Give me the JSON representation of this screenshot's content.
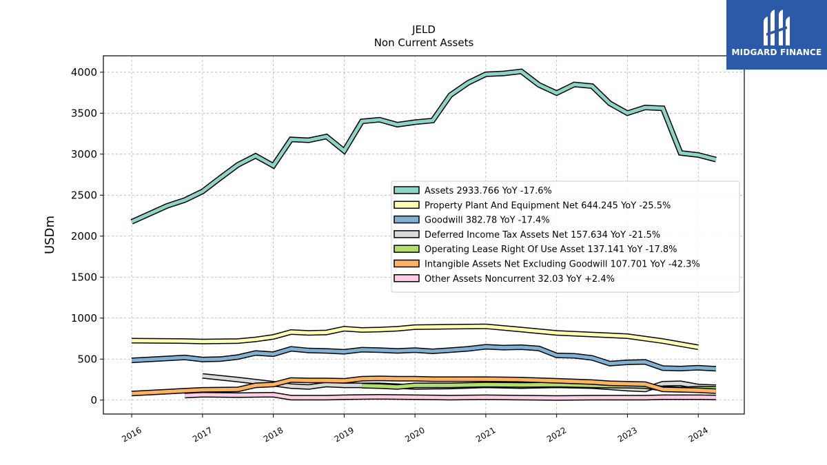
{
  "brand": {
    "name": "MIDGARD FINANCE",
    "color": "#2d5aa8"
  },
  "chart_data": {
    "type": "line",
    "title": "JELD",
    "subtitle": "Non Current  Assets",
    "xlabel": "",
    "ylabel": "USDm",
    "xlim": [
      2015.6,
      2024.65
    ],
    "ylim": [
      -170,
      4200
    ],
    "x_ticks": [
      2016,
      2017,
      2018,
      2019,
      2020,
      2021,
      2022,
      2023,
      2024
    ],
    "x_tick_labels": [
      "2016",
      "2017",
      "2018",
      "2019",
      "2020",
      "2021",
      "2022",
      "2023",
      "2024"
    ],
    "y_ticks": [
      0,
      500,
      1000,
      1500,
      2000,
      2500,
      3000,
      3500,
      4000
    ],
    "y_tick_labels": [
      "0",
      "500",
      "1000",
      "1500",
      "2000",
      "2500",
      "3000",
      "3500",
      "4000"
    ],
    "grid": true,
    "legend_position": "center-right",
    "series": [
      {
        "name": "Assets",
        "legend": "Assets  2933.766 YoY -17.6%",
        "color": "#8dd3c7",
        "x": [
          2016.0,
          2016.5,
          2016.75,
          2017.0,
          2017.25,
          2017.5,
          2017.75,
          2018.0,
          2018.25,
          2018.5,
          2018.75,
          2019.0,
          2019.25,
          2019.5,
          2019.75,
          2020.0,
          2020.25,
          2020.5,
          2020.75,
          2021.0,
          2021.25,
          2021.5,
          2021.75,
          2022.0,
          2022.25,
          2022.5,
          2022.75,
          2023.0,
          2023.25,
          2023.5,
          2023.75,
          2024.0,
          2024.25
        ],
        "y": [
          2175,
          2370,
          2440,
          2545,
          2710,
          2870,
          2980,
          2860,
          3180,
          3170,
          3215,
          3040,
          3400,
          3420,
          3360,
          3390,
          3410,
          3720,
          3870,
          3975,
          3985,
          4010,
          3845,
          3745,
          3850,
          3830,
          3620,
          3500,
          3570,
          3560,
          3015,
          2990,
          2934
        ]
      },
      {
        "name": "Property Plant And Equipment Net",
        "legend": "Property Plant And Equipment Net  644.245 YoY -25.5%",
        "color": "#ffffb3",
        "x": [
          2016.0,
          2016.75,
          2017.0,
          2017.5,
          2017.75,
          2018.0,
          2018.25,
          2018.5,
          2018.75,
          2019.0,
          2019.25,
          2019.5,
          2019.75,
          2020.0,
          2020.5,
          2021.0,
          2021.5,
          2022.0,
          2022.5,
          2023.0,
          2023.5,
          2024.0
        ],
        "y": [
          725,
          720,
          715,
          720,
          740,
          770,
          830,
          820,
          825,
          870,
          855,
          860,
          870,
          890,
          895,
          900,
          860,
          820,
          800,
          780,
          720,
          644
        ]
      },
      {
        "name": "Goodwill",
        "legend": "Goodwill  382.78 YoY -17.4%",
        "color": "#80b1d3",
        "x": [
          2016.0,
          2016.75,
          2017.0,
          2017.25,
          2017.5,
          2017.75,
          2018.0,
          2018.25,
          2018.5,
          2018.75,
          2019.0,
          2019.25,
          2019.5,
          2019.75,
          2020.0,
          2020.25,
          2020.5,
          2020.75,
          2021.0,
          2021.25,
          2021.5,
          2021.75,
          2022.0,
          2022.25,
          2022.5,
          2022.75,
          2023.0,
          2023.25,
          2023.5,
          2023.75,
          2024.0,
          2024.25
        ],
        "y": [
          485,
          520,
          495,
          500,
          525,
          575,
          560,
          625,
          605,
          600,
          590,
          615,
          610,
          600,
          610,
          595,
          610,
          625,
          650,
          640,
          645,
          630,
          545,
          540,
          515,
          445,
          460,
          465,
          390,
          385,
          395,
          383
        ]
      },
      {
        "name": "Deferred Income Tax Assets Net",
        "legend": "Deferred Income Tax Assets Net  157.634 YoY -21.5%",
        "color": "#d9d9d9",
        "x": [
          2017.0,
          2017.5,
          2018.0,
          2018.25,
          2018.5,
          2018.75,
          2019.0,
          2019.5,
          2020.0,
          2020.5,
          2021.0,
          2021.5,
          2022.0,
          2022.5,
          2023.0,
          2023.25,
          2023.5,
          2023.75,
          2024.0,
          2024.25
        ],
        "y": [
          295,
          250,
          200,
          170,
          160,
          190,
          180,
          180,
          160,
          165,
          180,
          170,
          180,
          170,
          140,
          130,
          200,
          205,
          165,
          158
        ]
      },
      {
        "name": "Operating Lease Right Of Use Asset",
        "legend": "Operating Lease Right Of Use Asset  137.141 YoY -17.8%",
        "color": "#b3de69",
        "x": [
          2019.25,
          2019.5,
          2019.75,
          2020.0,
          2020.5,
          2021.0,
          2021.5,
          2022.0,
          2022.5,
          2023.0,
          2023.25,
          2023.5,
          2023.75,
          2024.0,
          2024.25
        ],
        "y": [
          175,
          170,
          160,
          180,
          180,
          190,
          185,
          190,
          180,
          175,
          170,
          140,
          130,
          140,
          137
        ]
      },
      {
        "name": "Intangible Assets Net Excluding Goodwill",
        "legend": "Intangible Assets Net Excluding Goodwill  107.701 YoY -42.3%",
        "color": "#fdb462",
        "x": [
          2016.0,
          2016.75,
          2017.0,
          2017.5,
          2017.75,
          2018.0,
          2018.25,
          2018.5,
          2018.75,
          2019.0,
          2019.25,
          2019.5,
          2019.75,
          2020.0,
          2020.25,
          2020.5,
          2021.0,
          2021.5,
          2022.0,
          2022.5,
          2022.75,
          2023.0,
          2023.25,
          2023.5,
          2023.75,
          2024.0,
          2024.25
        ],
        "y": [
          80,
          115,
          125,
          130,
          180,
          190,
          245,
          240,
          240,
          235,
          260,
          265,
          260,
          260,
          255,
          255,
          255,
          250,
          235,
          220,
          205,
          200,
          195,
          130,
          125,
          120,
          108
        ]
      },
      {
        "name": "Other Assets Noncurrent",
        "legend": "Other Assets Noncurrent  32.03 YoY +2.4%",
        "color": "#fccde5",
        "x": [
          2016.75,
          2017.0,
          2017.5,
          2018.0,
          2018.25,
          2018.75,
          2019.0,
          2019.5,
          2020.0,
          2020.5,
          2021.0,
          2021.5,
          2022.0,
          2022.5,
          2023.0,
          2023.25,
          2023.5,
          2024.0,
          2024.25
        ],
        "y": [
          55,
          65,
          60,
          65,
          30,
          30,
          35,
          40,
          35,
          30,
          35,
          30,
          25,
          30,
          30,
          30,
          35,
          35,
          32
        ]
      }
    ]
  }
}
